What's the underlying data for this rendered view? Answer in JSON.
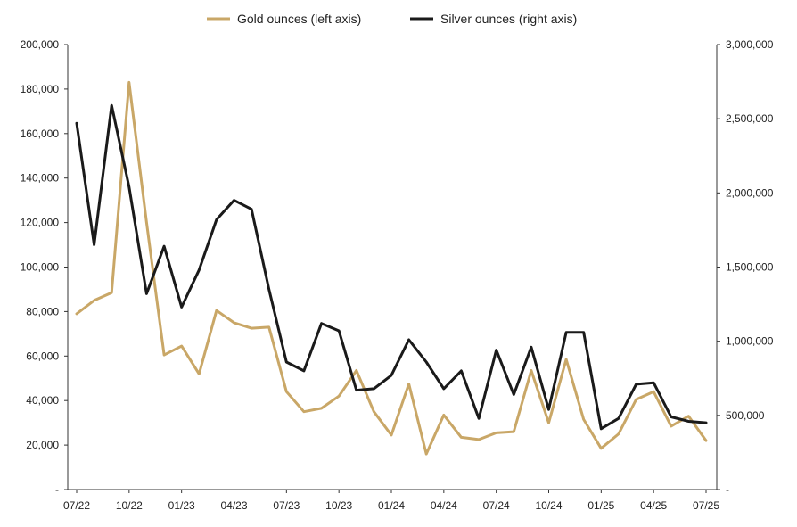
{
  "chart_data": {
    "type": "line",
    "title": "",
    "xlabel": "",
    "ylabel_left": "",
    "ylabel_right": "",
    "legend": {
      "placement": "top-center"
    },
    "grid": false,
    "x": [
      "07/22",
      "08/22",
      "09/22",
      "10/22",
      "11/22",
      "12/22",
      "01/23",
      "02/23",
      "03/23",
      "04/23",
      "05/23",
      "06/23",
      "07/23",
      "08/23",
      "09/23",
      "10/23",
      "11/23",
      "12/23",
      "01/24",
      "02/24",
      "03/24",
      "04/24",
      "05/24",
      "06/24",
      "07/24",
      "08/24",
      "09/24",
      "10/24",
      "11/24",
      "12/24",
      "01/25",
      "02/25",
      "03/25",
      "04/25",
      "05/25",
      "06/25",
      "07/25"
    ],
    "x_tick_labels": [
      "07/22",
      "10/22",
      "01/23",
      "04/23",
      "07/23",
      "10/23",
      "01/24",
      "04/24",
      "07/24",
      "10/24",
      "01/25",
      "04/25",
      "07/25"
    ],
    "left_axis": {
      "ylim": [
        0,
        200000
      ],
      "tick_labels": [
        "-",
        "20,000",
        "40,000",
        "60,000",
        "80,000",
        "100,000",
        "120,000",
        "140,000",
        "160,000",
        "180,000",
        "200,000"
      ]
    },
    "right_axis": {
      "ylim": [
        0,
        3000000
      ],
      "tick_labels": [
        "-",
        "500,000",
        "1,000,000",
        "1,500,000",
        "2,000,000",
        "2,500,000",
        "3,000,000"
      ]
    },
    "series": [
      {
        "name": "Gold ounces (left axis)",
        "axis": "left",
        "color": "#c9a767",
        "values": [
          79000,
          85000,
          88500,
          183000,
          120000,
          60500,
          64500,
          52000,
          80500,
          75000,
          72500,
          73000,
          44000,
          35000,
          36500,
          42000,
          53500,
          35000,
          24500,
          47500,
          16000,
          33500,
          23500,
          22500,
          25500,
          26000,
          53500,
          30000,
          58500,
          31500,
          18500,
          25000,
          40500,
          44000,
          28500,
          33000,
          22000
        ]
      },
      {
        "name": "Silver ounces (right axis)",
        "axis": "right",
        "color": "#1a1a1a",
        "values": [
          2470000,
          1650000,
          2590000,
          2040000,
          1320000,
          1640000,
          1230000,
          1480000,
          1820000,
          1950000,
          1890000,
          1350000,
          860000,
          800000,
          1120000,
          1070000,
          670000,
          680000,
          770000,
          1010000,
          860000,
          680000,
          800000,
          480000,
          940000,
          640000,
          960000,
          540000,
          1060000,
          1060000,
          410000,
          480000,
          710000,
          720000,
          490000,
          460000,
          450000
        ]
      }
    ]
  }
}
